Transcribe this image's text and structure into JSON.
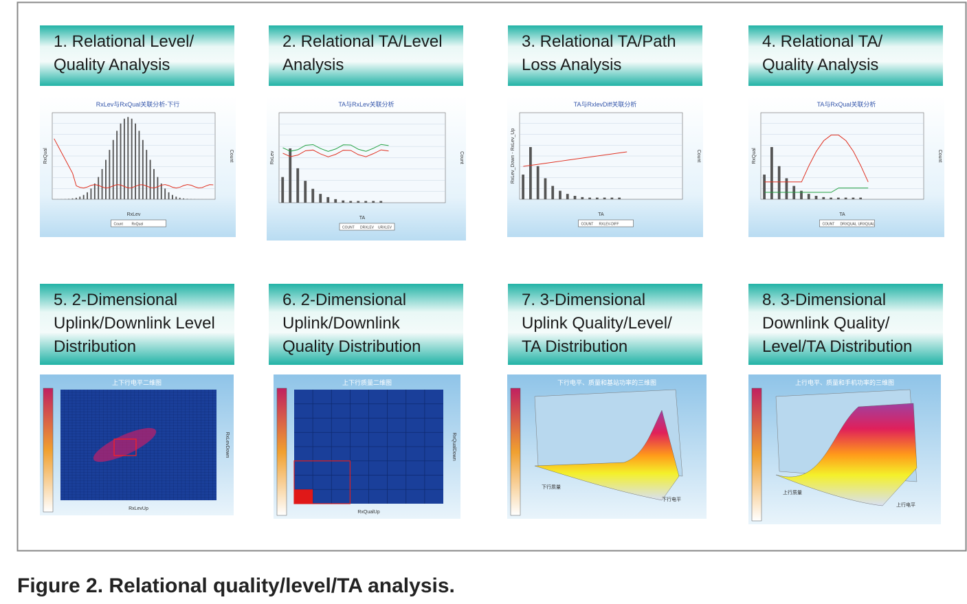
{
  "figure": {
    "caption": "Figure 2. Relational quality/level/TA analysis.",
    "panels": [
      {
        "title_lines": [
          "1. Relational Level/",
          "Quality Analysis"
        ],
        "chart": {
          "title": "RxLev与RxQual关联分析-下行",
          "x_label": "RxLev",
          "y_label": "RxQual",
          "y2_label": "Count",
          "legend": [
            "Count",
            "RxQual"
          ]
        }
      },
      {
        "title_lines": [
          "2. Relational TA/Level",
          "Analysis"
        ],
        "chart": {
          "title": "TA与RxLev关联分析",
          "x_label": "TA",
          "y_label": "RxLev",
          "y2_label": "Count",
          "legend": [
            "COUNT",
            "DRXLEV",
            "URXLEV"
          ]
        }
      },
      {
        "title_lines": [
          "3. Relational TA/Path",
          "Loss Analysis"
        ],
        "chart": {
          "title": "TA与RxlevDiff关联分析",
          "x_label": "TA",
          "y_label": "RxLev_Down - RxLev_Up",
          "y2_label": "Count",
          "legend": [
            "COUNT",
            "RXLEV-DIFF"
          ]
        }
      },
      {
        "title_lines": [
          "4. Relational TA/",
          "Quality Analysis"
        ],
        "chart": {
          "title": "TA与RxQual关联分析",
          "x_label": "TA",
          "y_label": "RxQual",
          "y2_label": "Count",
          "legend": [
            "COUNT",
            "DRXQUAL",
            "URXQUAL"
          ]
        }
      },
      {
        "title_lines": [
          "5. 2-Dimensional",
          "Uplink/Downlink Level",
          "Distribution"
        ],
        "chart": {
          "title": "上下行电平二维图",
          "x_label": "RxLevUp",
          "y2_label": "RxLevDown"
        }
      },
      {
        "title_lines": [
          "6. 2-Dimensional",
          "Uplink/Downlink",
          "Quality Distribution"
        ],
        "chart": {
          "title": "上下行质量二维图",
          "x_label": "RxQualUp",
          "y2_label": "RxQualDown"
        }
      },
      {
        "title_lines": [
          "7. 3-Dimensional",
          "Uplink Quality/Level/",
          "TA Distribution"
        ],
        "chart": {
          "title": "下行电平、质量和基站功率的三维图",
          "x_label": "下行电平",
          "y_label": "下行质量"
        }
      },
      {
        "title_lines": [
          "8. 3-Dimensional",
          "Downlink Quality/",
          "Level/TA Distribution"
        ],
        "chart": {
          "title": "上行电平、质量和手机功率的三维图",
          "x_label": "上行电平",
          "y_label": "上行质量"
        }
      }
    ]
  }
}
